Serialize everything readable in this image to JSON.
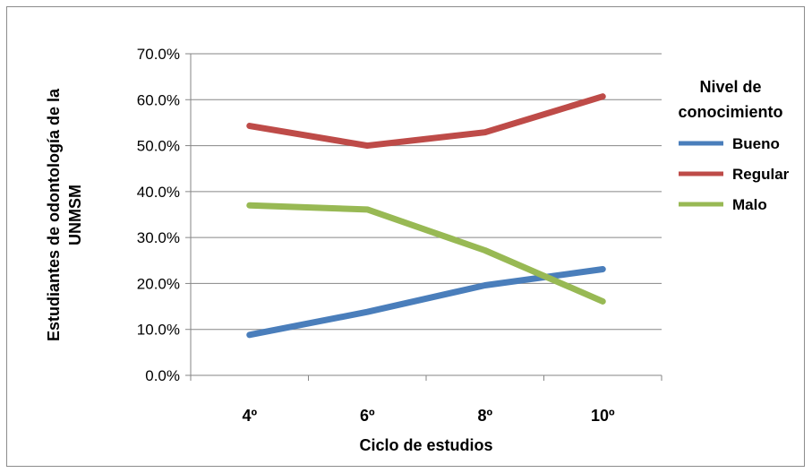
{
  "chart_data": {
    "type": "line",
    "title": "",
    "categories": [
      "4º",
      "6º",
      "8º",
      "10º"
    ],
    "xlabel": "Ciclo de estudios",
    "ylabel": [
      "Estudiantes de odontología de la",
      "UNMSM"
    ],
    "ylim": [
      0,
      0.7
    ],
    "yticks": [
      "0.0%",
      "10.0%",
      "20.0%",
      "30.0%",
      "40.0%",
      "50.0%",
      "60.0%",
      "70.0%"
    ],
    "grid": true,
    "legend_position": "right",
    "legend_title": [
      "Nivel de",
      "conocimiento"
    ],
    "series": [
      {
        "name": "Bueno",
        "color": "#4a7ebb",
        "values": [
          0.088,
          0.138,
          0.196,
          0.231
        ]
      },
      {
        "name": "Regular",
        "color": "#be4b48",
        "values": [
          0.543,
          0.5,
          0.529,
          0.607
        ]
      },
      {
        "name": "Malo",
        "color": "#98b954",
        "values": [
          0.37,
          0.361,
          0.272,
          0.161
        ]
      }
    ]
  }
}
